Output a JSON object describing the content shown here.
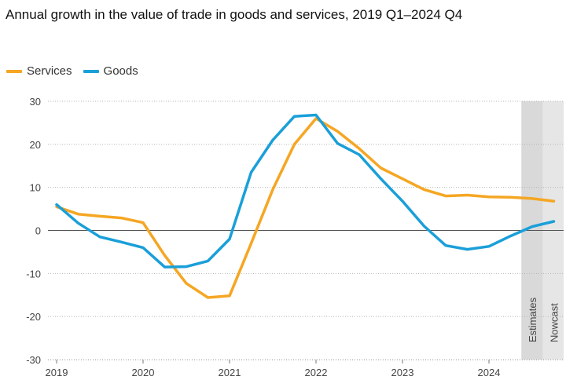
{
  "chart_data": {
    "type": "line",
    "title": "Annual growth in the value of trade in goods and services, 2019 Q1–2024 Q4",
    "xlabel": "",
    "ylabel": "",
    "x": [
      "2019 Q1",
      "2019 Q2",
      "2019 Q3",
      "2019 Q4",
      "2020 Q1",
      "2020 Q2",
      "2020 Q3",
      "2020 Q4",
      "2021 Q1",
      "2021 Q2",
      "2021 Q3",
      "2021 Q4",
      "2022 Q1",
      "2022 Q2",
      "2022 Q3",
      "2022 Q4",
      "2023 Q1",
      "2023 Q2",
      "2023 Q3",
      "2023 Q4",
      "2024 Q1",
      "2024 Q2",
      "2024 Q3",
      "2024 Q4"
    ],
    "x_tick_labels": [
      "2019",
      "2020",
      "2021",
      "2022",
      "2023",
      "2024"
    ],
    "y_ticks": [
      30,
      20,
      10,
      0,
      -10,
      -20,
      -30
    ],
    "ylim": [
      -30,
      30
    ],
    "grid": "horizontal dotted",
    "legend_position": "top-left",
    "series": [
      {
        "name": "Services",
        "color": "#F5A623",
        "values": [
          5.5,
          3.8,
          3.3,
          2.9,
          1.8,
          -5.8,
          -12.3,
          -15.6,
          -15.2,
          -3.0,
          9.5,
          20.0,
          26.0,
          23.0,
          19.0,
          14.5,
          12.0,
          9.5,
          8.0,
          8.2,
          7.8,
          7.7,
          7.4,
          6.8
        ]
      },
      {
        "name": "Goods",
        "color": "#1A9FD9",
        "values": [
          6.0,
          1.7,
          -1.5,
          -2.7,
          -4.0,
          -8.5,
          -8.4,
          -7.1,
          -2.0,
          13.5,
          21.0,
          26.5,
          26.8,
          20.2,
          17.6,
          12.0,
          6.8,
          1.0,
          -3.5,
          -4.4,
          -3.7,
          -1.3,
          0.9,
          2.1
        ]
      }
    ],
    "bands": [
      {
        "label": "Estimates",
        "from_index": 22,
        "to_index": 23
      },
      {
        "label": "Nowcast",
        "from_index": 23,
        "to_index": 24
      }
    ]
  }
}
